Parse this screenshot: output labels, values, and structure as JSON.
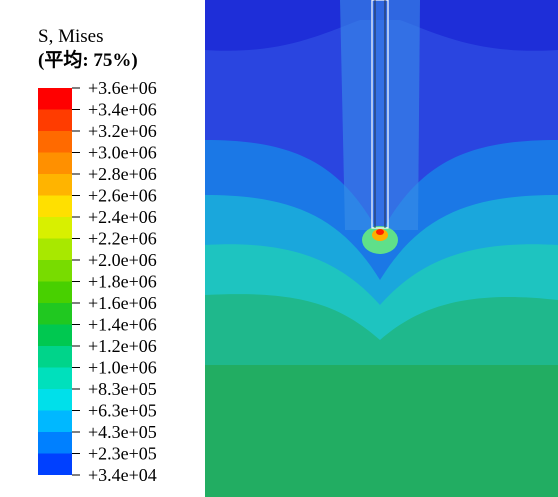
{
  "legend": {
    "title": "S, Mises",
    "subtitle": "(平均: 75%)",
    "labels": [
      "+3.6e+06",
      "+3.4e+06",
      "+3.2e+06",
      "+3.0e+06",
      "+2.8e+06",
      "+2.6e+06",
      "+2.4e+06",
      "+2.2e+06",
      "+2.0e+06",
      "+1.8e+06",
      "+1.6e+06",
      "+1.4e+06",
      "+1.2e+06",
      "+1.0e+06",
      "+8.3e+05",
      "+6.3e+05",
      "+4.3e+05",
      "+2.3e+05",
      "+3.4e+04"
    ]
  }
}
